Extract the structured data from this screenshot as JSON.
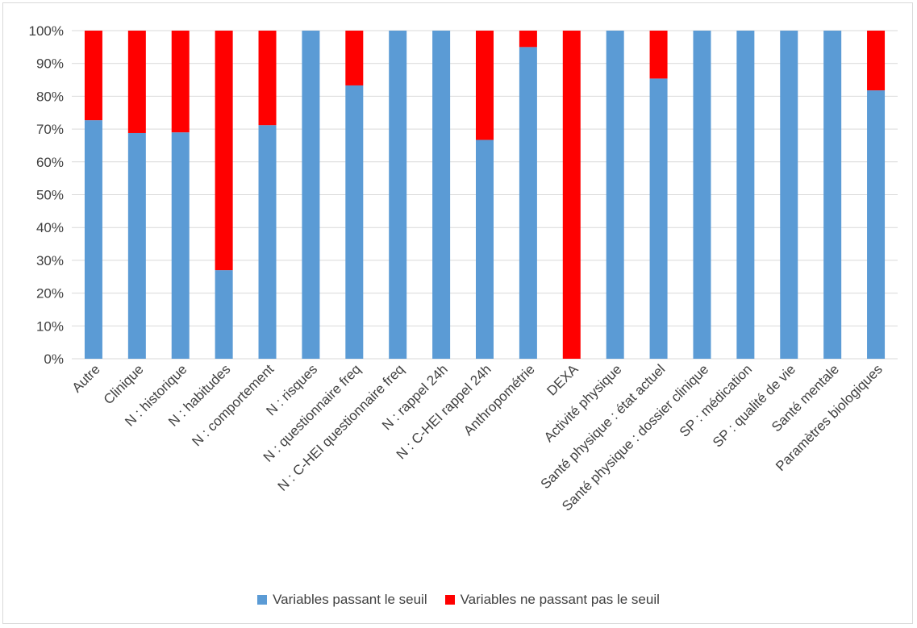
{
  "chart_data": {
    "type": "bar",
    "stacked": true,
    "normalized": true,
    "categories": [
      "Autre",
      "Clinique",
      "N : historique",
      "N : habitudes",
      "N : comportement",
      "N : risques",
      "N : questionnaire freq",
      "N : C-HEI questionnaire freq",
      "N : rappel 24h",
      "N : C-HEI rappel 24h",
      "Anthropométrie",
      "DEXA",
      "Activité physique",
      "Santé physique : état actuel",
      "Santé physique : dossier clinique",
      "SP : médication",
      "SP : qualité de vie",
      "Santé mentale",
      "Paramètres biologiques"
    ],
    "series": [
      {
        "name": "Variables passant le seuil",
        "color": "#5b9bd5",
        "values": [
          72.7,
          68.8,
          69.0,
          27.0,
          71.2,
          100,
          83.3,
          100,
          100,
          66.7,
          95.0,
          0,
          100,
          85.4,
          100,
          100,
          100,
          100,
          81.8
        ]
      },
      {
        "name": "Variables ne passant pas le seuil",
        "color": "#ff0000",
        "values": [
          27.3,
          31.2,
          31.0,
          73.0,
          28.8,
          0,
          16.7,
          0,
          0,
          33.3,
          5.0,
          100,
          0,
          14.6,
          0,
          0,
          0,
          0,
          18.2
        ]
      }
    ],
    "yticks": [
      "0%",
      "10%",
      "20%",
      "30%",
      "40%",
      "50%",
      "60%",
      "70%",
      "80%",
      "90%",
      "100%"
    ],
    "ylim": [
      0,
      100
    ],
    "grid": true,
    "legend_position": "bottom"
  }
}
